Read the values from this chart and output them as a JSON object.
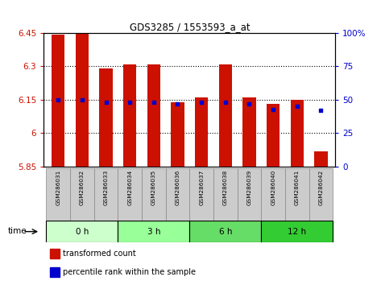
{
  "title": "GDS3285 / 1553593_a_at",
  "samples": [
    "GSM286031",
    "GSM286032",
    "GSM286033",
    "GSM286034",
    "GSM286035",
    "GSM286036",
    "GSM286037",
    "GSM286038",
    "GSM286039",
    "GSM286040",
    "GSM286041",
    "GSM286042"
  ],
  "transformed_counts": [
    6.44,
    6.46,
    6.29,
    6.31,
    6.31,
    6.14,
    6.16,
    6.31,
    6.16,
    6.13,
    6.15,
    5.92
  ],
  "percentile_ranks": [
    50,
    50,
    48,
    48,
    48,
    47,
    48,
    48,
    47,
    43,
    45,
    42
  ],
  "ylim_left": [
    5.85,
    6.45
  ],
  "ylim_right": [
    0,
    100
  ],
  "yticks_left": [
    5.85,
    6.0,
    6.15,
    6.3,
    6.45
  ],
  "yticks_right": [
    0,
    25,
    50,
    75,
    100
  ],
  "ytick_labels_left": [
    "5.85",
    "6",
    "6.15",
    "6.3",
    "6.45"
  ],
  "ytick_labels_right": [
    "0",
    "25",
    "50",
    "75",
    "100%"
  ],
  "groups": [
    {
      "label": "0 h",
      "start": 0,
      "end": 2,
      "color": "#ccffcc"
    },
    {
      "label": "3 h",
      "start": 3,
      "end": 5,
      "color": "#99ff99"
    },
    {
      "label": "6 h",
      "start": 6,
      "end": 8,
      "color": "#66dd66"
    },
    {
      "label": "12 h",
      "start": 9,
      "end": 11,
      "color": "#33cc33"
    }
  ],
  "bar_color": "#cc1100",
  "percentile_color": "#0000cc",
  "baseline": 5.85,
  "bar_width": 0.55,
  "grid_color": "black",
  "sample_box_color": "#cccccc",
  "time_label": "time",
  "legend_items": [
    {
      "label": "transformed count",
      "color": "#cc1100"
    },
    {
      "label": "percentile rank within the sample",
      "color": "#0000cc"
    }
  ]
}
